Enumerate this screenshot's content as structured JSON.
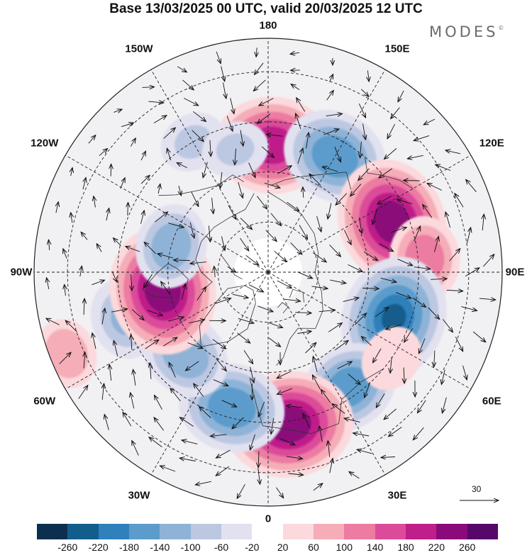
{
  "title": "Base 13/03/2025 00 UTC, valid 20/03/2025 12 UTC",
  "brand": "MODES",
  "brand_mark": "©",
  "lon_labels": [
    {
      "text": "180",
      "angle": 180
    },
    {
      "text": "150E",
      "angle": 150
    },
    {
      "text": "120E",
      "angle": 120
    },
    {
      "text": "90E",
      "angle": 90
    },
    {
      "text": "60E",
      "angle": 60
    },
    {
      "text": "30E",
      "angle": 30
    },
    {
      "text": "0",
      "angle": 0
    },
    {
      "text": "30W",
      "angle": -30
    },
    {
      "text": "60W",
      "angle": -60
    },
    {
      "text": "90W",
      "angle": -90
    },
    {
      "text": "120W",
      "angle": -120
    },
    {
      "text": "150W",
      "angle": -150
    }
  ],
  "vector_reference": "30",
  "colorbar": {
    "ticks": [
      "-260",
      "-220",
      "-180",
      "-140",
      "-100",
      "-60",
      "-20",
      "20",
      "60",
      "100",
      "140",
      "180",
      "220",
      "260"
    ],
    "colors": [
      "#0d2f4f",
      "#125d8c",
      "#2f80bb",
      "#5b9ccc",
      "#8eb3d7",
      "#bcc8e1",
      "#e2e1ef",
      "#ffffff",
      "#fbd9dc",
      "#f5adb8",
      "#ec7ca1",
      "#dc4b9a",
      "#bf1f8a",
      "#8a0a7a",
      "#57076a"
    ]
  },
  "anomaly_centers": [
    {
      "lon": 178,
      "lat": 52,
      "value": 200
    },
    {
      "lon": 150,
      "lat": 50,
      "value": -170
    },
    {
      "lon": 112,
      "lat": 50,
      "value": 230
    },
    {
      "lon": 95,
      "lat": 43,
      "value": 110
    },
    {
      "lon": 70,
      "lat": 50,
      "value": -220
    },
    {
      "lon": 35,
      "lat": 48,
      "value": -150
    },
    {
      "lon": 8,
      "lat": 44,
      "value": 230
    },
    {
      "lon": -15,
      "lat": 48,
      "value": -170
    },
    {
      "lon": -45,
      "lat": 55,
      "value": -130
    },
    {
      "lon": -72,
      "lat": 45,
      "value": -100
    },
    {
      "lon": -68,
      "lat": 25,
      "value": 70
    },
    {
      "lon": -80,
      "lat": 58,
      "value": 230
    },
    {
      "lon": -105,
      "lat": 60,
      "value": -110
    },
    {
      "lon": -150,
      "lat": 45,
      "value": -60
    },
    {
      "lon": -165,
      "lat": 52,
      "value": -60
    },
    {
      "lon": 55,
      "lat": 45,
      "value": 60
    }
  ]
}
